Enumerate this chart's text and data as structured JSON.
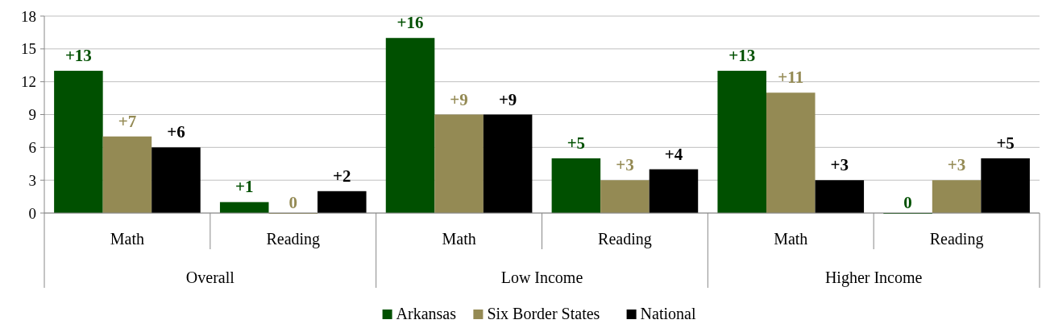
{
  "chart_data": {
    "type": "bar",
    "categories": [
      "Math",
      "Reading",
      "Math",
      "Reading",
      "Math",
      "Reading"
    ],
    "annotations": [
      "Overall",
      "Low Income",
      "Higher Income"
    ],
    "series": [
      {
        "name": "Arkansas",
        "color": "#005000",
        "values": [
          13,
          1,
          16,
          5,
          13,
          0
        ],
        "value_labels": [
          "+13",
          "+1",
          "+16",
          "+5",
          "+13",
          "0"
        ]
      },
      {
        "name": "Six Border States",
        "color": "#948a54",
        "values": [
          7,
          0,
          9,
          3,
          11,
          3
        ],
        "value_labels": [
          "+7",
          "0",
          "+9",
          "+3",
          "+11",
          "+3"
        ]
      },
      {
        "name": "National",
        "color": "#000000",
        "values": [
          6,
          2,
          9,
          4,
          3,
          5
        ],
        "value_labels": [
          "+6",
          "+2",
          "+9",
          "+4",
          "+3",
          "+5"
        ]
      }
    ],
    "ylim": [
      0,
      18
    ],
    "yticks": [
      0,
      3,
      6,
      9,
      12,
      15,
      18
    ],
    "grid": "y",
    "legend": "bottom"
  }
}
